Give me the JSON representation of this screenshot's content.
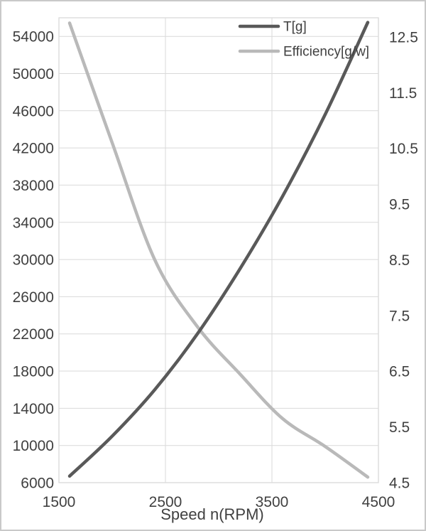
{
  "chart_data": {
    "type": "line",
    "title": "",
    "xlabel": "Speed n(RPM)",
    "grid": true,
    "legend_position": "top-center-inside",
    "x": [
      1600,
      2000,
      2400,
      2800,
      3200,
      3600,
      4000,
      4400
    ],
    "series": [
      {
        "name": "T[g]",
        "axis": "left",
        "color": "#595959",
        "values": [
          6700,
          11000,
          16000,
          22000,
          29000,
          36800,
          45600,
          55500
        ]
      },
      {
        "name": "Efficiency[g/w]",
        "axis": "right",
        "color": "#b9b9b9",
        "values": [
          12.75,
          10.6,
          8.5,
          7.3,
          6.45,
          5.65,
          5.15,
          4.6
        ]
      }
    ],
    "x_axis": {
      "min": 1500,
      "max": 4500,
      "tick_values": [
        1500,
        2500,
        3500,
        4500
      ],
      "tick_labels": [
        "1500",
        "2500",
        "3500",
        "4500"
      ],
      "gridline_values": [
        2500,
        3500
      ]
    },
    "left_axis": {
      "min": 6000,
      "max": 56000,
      "tick_values": [
        6000,
        10000,
        14000,
        18000,
        22000,
        26000,
        30000,
        34000,
        38000,
        42000,
        46000,
        50000,
        54000
      ],
      "tick_labels": [
        "6000",
        "10000",
        "14000",
        "18000",
        "22000",
        "26000",
        "30000",
        "34000",
        "38000",
        "42000",
        "46000",
        "50000",
        "54000"
      ]
    },
    "right_axis": {
      "min": 4.5,
      "max": 12.844,
      "tick_values": [
        4.5,
        5.5,
        6.5,
        7.5,
        8.5,
        9.5,
        10.5,
        11.5,
        12.5
      ],
      "tick_labels": [
        "4.5",
        "5.5",
        "6.5",
        "7.5",
        "8.5",
        "9.5",
        "10.5",
        "11.5",
        "12.5"
      ]
    },
    "colors": {
      "gridline": "#d9d9d9",
      "plot_border": "#d9d9d9",
      "axis_text": "#404040",
      "background": "#ffffff",
      "screen_border": "#c9c9c9"
    }
  }
}
